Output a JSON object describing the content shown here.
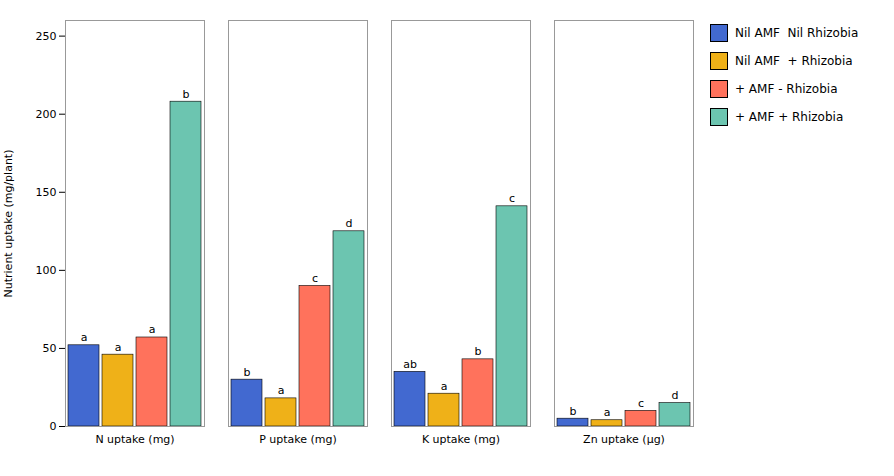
{
  "chart_data": {
    "type": "bar",
    "categories": [
      "N uptake (mg)",
      "P uptake (mg)",
      "K uptake (mg)",
      "Zn uptake (μg)"
    ],
    "series": [
      {
        "name": "Nil AMF  Nil Rhizobia",
        "values": [
          52,
          30,
          35,
          5.0
        ],
        "annotations": [
          "a",
          "b",
          "ab",
          "b"
        ]
      },
      {
        "name": "Nil AMF  + Rhizobia",
        "values": [
          46,
          18,
          21,
          4.0
        ],
        "annotations": [
          "a",
          "a",
          "a",
          "a"
        ]
      },
      {
        "name": "+ AMF - Rhizobia",
        "values": [
          57,
          90,
          43,
          10.0
        ],
        "annotations": [
          "a",
          "c",
          "b",
          "c"
        ]
      },
      {
        "name": "+ AMF + Rhizobia",
        "values": [
          208,
          125,
          141,
          15.0
        ],
        "annotations": [
          "b",
          "d",
          "c",
          "d"
        ]
      }
    ],
    "ylabel": "Nutrient uptake (mg/plant)",
    "ylim": [
      0,
      260
    ],
    "yticks": [
      0,
      50,
      100,
      150,
      200,
      250
    ],
    "grid": false,
    "legend": "right"
  }
}
